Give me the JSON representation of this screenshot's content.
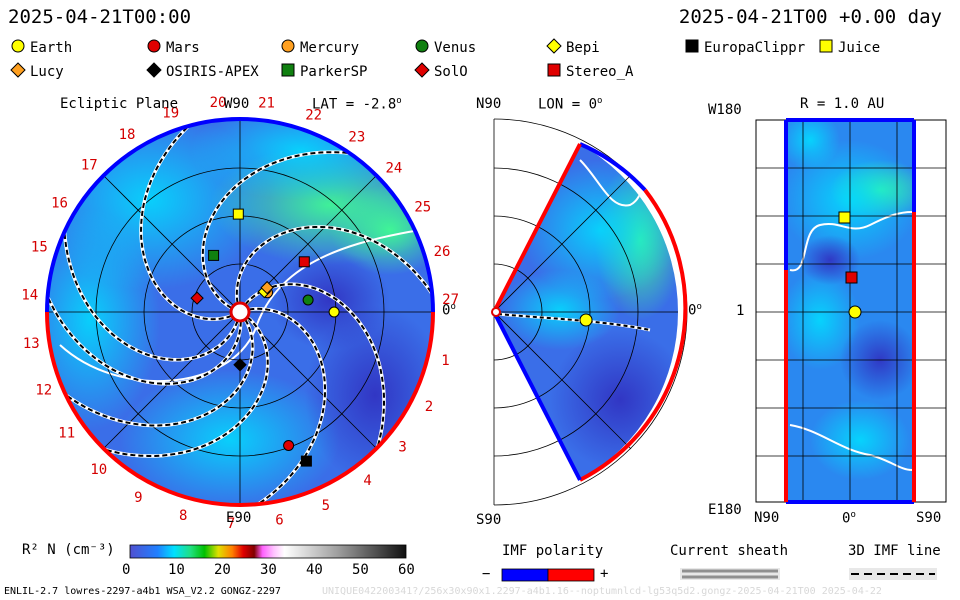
{
  "header": {
    "left_time": "2025-04-21T00:00",
    "right_time": "2025-04-21T00 +0.00 day"
  },
  "legend": [
    {
      "name": "Earth",
      "shape": "circle",
      "color": "#ffff00"
    },
    {
      "name": "Mars",
      "shape": "circle",
      "color": "#e00000"
    },
    {
      "name": "Mercury",
      "shape": "circle",
      "color": "#ffa020"
    },
    {
      "name": "Venus",
      "shape": "circle",
      "color": "#108010"
    },
    {
      "name": "Bepi",
      "shape": "diamond",
      "color": "#ffff00"
    },
    {
      "name": "EuropaClippr",
      "shape": "square",
      "color": "#000000"
    },
    {
      "name": "Juice",
      "shape": "square",
      "color": "#ffff00"
    },
    {
      "name": "Lucy",
      "shape": "diamond",
      "color": "#ffa020"
    },
    {
      "name": "OSIRIS-APEX",
      "shape": "diamond",
      "color": "#000000"
    },
    {
      "name": "ParkerSP",
      "shape": "square",
      "color": "#108010"
    },
    {
      "name": "SolO",
      "shape": "diamond",
      "color": "#e00000"
    },
    {
      "name": "Stereo_A",
      "shape": "square",
      "color": "#e00000"
    }
  ],
  "ecliptic": {
    "title": "Ecliptic Plane",
    "top_label": "W90",
    "bottom_label": "E90",
    "right_label": "0",
    "lat_label": "LAT = -2.8",
    "ticks": [
      "1",
      "2",
      "3",
      "4",
      "5",
      "6",
      "7",
      "8",
      "9",
      "10",
      "11",
      "12",
      "13",
      "14",
      "15",
      "16",
      "17",
      "18",
      "19",
      "20",
      "21",
      "22",
      "23",
      "24",
      "25",
      "26",
      "27"
    ]
  },
  "meridional": {
    "lon_label": "LON = 0",
    "top_label": "N90",
    "bottom_label": "S90",
    "right_label": "0"
  },
  "radial": {
    "r_label": "R = 1.0 AU",
    "top_label": "W180",
    "bottom_label": "E180",
    "left_label": "1",
    "x_left": "N90",
    "x_mid": "0",
    "x_right": "S90"
  },
  "colorbar": {
    "label": "R² N (cm⁻³)",
    "ticks": [
      "0",
      "10",
      "20",
      "30",
      "40",
      "50",
      "60"
    ]
  },
  "imf": {
    "title": "IMF polarity",
    "minus": "−",
    "plus": "+"
  },
  "sheath": {
    "title": "Current sheath"
  },
  "imf3d": {
    "title": "3D IMF line"
  },
  "footer": {
    "left": "ENLIL-2.7 lowres-2297-a4b1 WSA_V2.2 GONGZ-2297",
    "right": "UNIQUE042200341?/256x30x90x1.2297-a4b1.16--noptumnlcd-lg53q5d2.gongz-2025-04-21T00  2025-04-22"
  },
  "chart_data": {
    "type": "heatmap",
    "quantity": "R² N (cm⁻³)",
    "clim": [
      0,
      60
    ],
    "time": "2025-04-21T00:00",
    "ecliptic_objects": [
      {
        "name": "Earth",
        "r_au": 0.98,
        "lon_deg": 0
      },
      {
        "name": "Mars",
        "r_au": 1.48,
        "lon_deg": -70
      },
      {
        "name": "Mercury",
        "r_au": 0.35,
        "lon_deg": 35
      },
      {
        "name": "Venus",
        "r_au": 0.72,
        "lon_deg": 10
      },
      {
        "name": "Bepi",
        "r_au": 0.33,
        "lon_deg": 40
      },
      {
        "name": "EuropaClippr",
        "r_au": 1.7,
        "lon_deg": -66
      },
      {
        "name": "Juice",
        "r_au": 1.02,
        "lon_deg": 91
      },
      {
        "name": "Lucy",
        "r_au": 0.38,
        "lon_deg": 42
      },
      {
        "name": "OSIRIS-APEX",
        "r_au": 0.55,
        "lon_deg": -90
      },
      {
        "name": "ParkerSP",
        "r_au": 0.65,
        "lon_deg": 115
      },
      {
        "name": "SolO",
        "r_au": 0.47,
        "lon_deg": 162
      },
      {
        "name": "Stereo_A",
        "r_au": 0.85,
        "lon_deg": 38
      }
    ]
  }
}
